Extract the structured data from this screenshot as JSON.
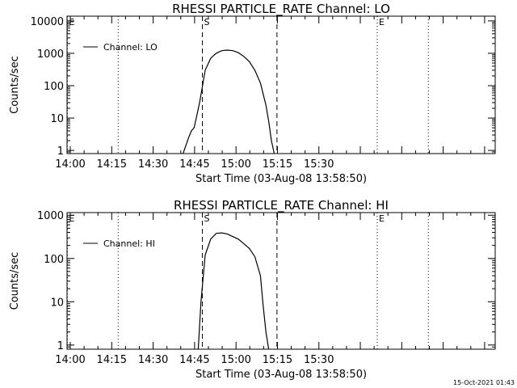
{
  "timestamp": "15-Oct-2021 01:43",
  "chart_data": [
    {
      "type": "line",
      "title": "RHESSI PARTICLE_RATE Channel: LO",
      "xlabel": "Start Time (03-Aug-08 13:58:50)",
      "ylabel": "Counts/sec",
      "xlim": [
        0,
        155
      ],
      "ylim": [
        0.8,
        14000
      ],
      "yscale": "log",
      "x_ticks": [
        {
          "t": 1.17,
          "label": "14:00"
        },
        {
          "t": 16.17,
          "label": "14:15"
        },
        {
          "t": 31.17,
          "label": "14:30"
        },
        {
          "t": 46.17,
          "label": "14:45"
        },
        {
          "t": 61.17,
          "label": "15:00"
        },
        {
          "t": 76.17,
          "label": "15:15"
        },
        {
          "t": 91.17,
          "label": "15:30"
        }
      ],
      "y_ticks": [
        {
          "v": 1,
          "label": "1"
        },
        {
          "v": 10,
          "label": "10"
        },
        {
          "v": 100,
          "label": "100"
        },
        {
          "v": 1000,
          "label": "1000"
        },
        {
          "v": 10000,
          "label": "10000"
        }
      ],
      "legend": {
        "label": "Channel: LO",
        "position": "top-left"
      },
      "markers": [
        {
          "t": 0.1,
          "label": "E",
          "style": "dotted"
        },
        {
          "t": 18.5,
          "label": "",
          "style": "dotted"
        },
        {
          "t": 49.0,
          "label": "S",
          "style": "dashed"
        },
        {
          "t": 76.0,
          "label": "",
          "style": "dashed"
        },
        {
          "t": 112.3,
          "label": "E",
          "style": "dotted"
        },
        {
          "t": 130.8,
          "label": "",
          "style": "dotted"
        }
      ],
      "series": [
        {
          "name": "Channel: LO",
          "x": [
            42,
            44,
            45,
            46,
            48,
            50,
            52,
            54,
            56,
            58,
            60,
            62,
            64,
            66,
            68,
            70,
            72,
            73,
            74,
            75
          ],
          "y": [
            0.8,
            2.5,
            4,
            5,
            30,
            300,
            700,
            1000,
            1200,
            1250,
            1200,
            1050,
            800,
            550,
            300,
            120,
            25,
            8,
            2,
            0.8
          ]
        }
      ]
    },
    {
      "type": "line",
      "title": "RHESSI PARTICLE_RATE Channel: HI",
      "xlabel": "Start Time (03-Aug-08 13:58:50)",
      "ylabel": "Counts/sec",
      "xlim": [
        0,
        155
      ],
      "ylim": [
        0.8,
        1150
      ],
      "yscale": "log",
      "x_ticks": [
        {
          "t": 1.17,
          "label": "14:00"
        },
        {
          "t": 16.17,
          "label": "14:15"
        },
        {
          "t": 31.17,
          "label": "14:30"
        },
        {
          "t": 46.17,
          "label": "14:45"
        },
        {
          "t": 61.17,
          "label": "15:00"
        },
        {
          "t": 76.17,
          "label": "15:15"
        },
        {
          "t": 91.17,
          "label": "15:30"
        }
      ],
      "y_ticks": [
        {
          "v": 1,
          "label": "1"
        },
        {
          "v": 10,
          "label": "10"
        },
        {
          "v": 100,
          "label": "100"
        },
        {
          "v": 1000,
          "label": "1000"
        }
      ],
      "legend": {
        "label": "Channel: HI",
        "position": "top-left"
      },
      "markers": [
        {
          "t": 0.1,
          "label": "E",
          "style": "dotted"
        },
        {
          "t": 18.5,
          "label": "",
          "style": "dotted"
        },
        {
          "t": 49.0,
          "label": "S",
          "style": "dashed"
        },
        {
          "t": 76.0,
          "label": "",
          "style": "dashed"
        },
        {
          "t": 112.3,
          "label": "E",
          "style": "dotted"
        },
        {
          "t": 130.8,
          "label": "",
          "style": "dotted"
        }
      ],
      "series": [
        {
          "name": "Channel: HI",
          "x": [
            47.5,
            48.5,
            50,
            52,
            54,
            56,
            58,
            60,
            62,
            64,
            66,
            68,
            70,
            71,
            72,
            73
          ],
          "y": [
            0.8,
            10,
            120,
            280,
            380,
            390,
            370,
            320,
            280,
            220,
            170,
            110,
            40,
            8,
            2,
            0.8
          ]
        }
      ]
    }
  ]
}
